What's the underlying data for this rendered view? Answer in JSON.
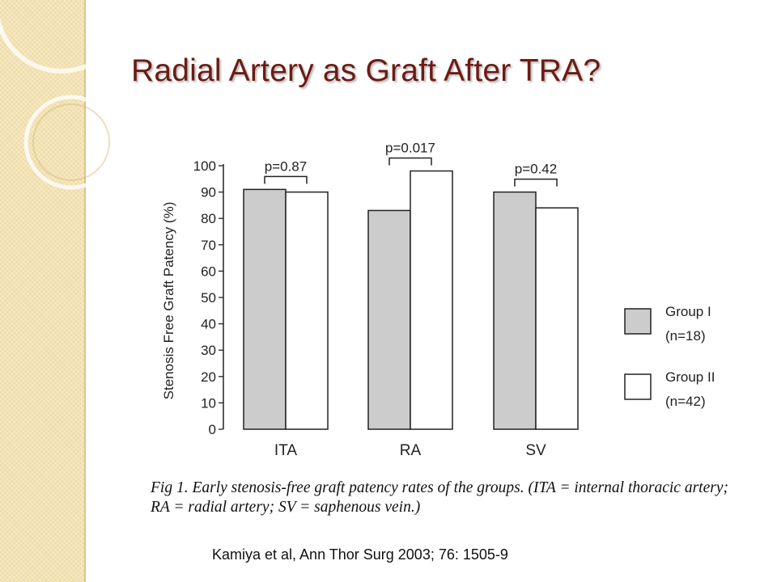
{
  "slide": {
    "title": "Radial Artery as Graft After TRA?",
    "caption": "Fig 1.  Early stenosis-free graft patency rates of the groups. (ITA = internal thoracic artery; RA = radial artery; SV = saphenous vein.)",
    "citation": "Kamiya et al, Ann Thor Surg 2003; 76: 1505-9"
  },
  "colors": {
    "title": "#6b1c14",
    "group1_fill": "#cccccc",
    "group2_fill": "#ffffff",
    "side_band": "#f3e2b3"
  },
  "chart_data": {
    "type": "bar",
    "categories": [
      "ITA",
      "RA",
      "SV"
    ],
    "series": [
      {
        "name": "Group I",
        "values": [
          91,
          83,
          90
        ]
      },
      {
        "name": "Group II",
        "values": [
          90,
          98,
          84
        ]
      }
    ],
    "legend": [
      {
        "label": "Group I",
        "sublabel": "(n=18)"
      },
      {
        "label": "Group II",
        "sublabel": "(n=42)"
      }
    ],
    "legend_position": "right",
    "annotations": [
      "p=0.87",
      "p=0.017",
      "p=0.42"
    ],
    "ylabel": "Stenosis Free Graft Patency (%)",
    "xlabel": "",
    "ylim": [
      0,
      100
    ],
    "yticks": [
      "0",
      "10",
      "20",
      "30",
      "40",
      "50",
      "60",
      "70",
      "80",
      "90",
      "100"
    ],
    "grid": false
  }
}
